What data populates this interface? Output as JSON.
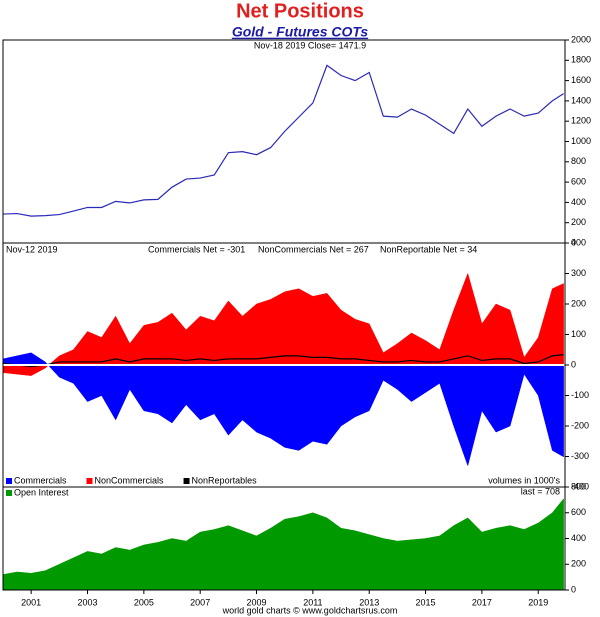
{
  "chart_data": [
    {
      "type": "line",
      "title": "Net Positions",
      "subtitle": "Gold - Futures COTs",
      "annotations": [
        "Nov-18 2019  Close= 1471.9"
      ],
      "x": [
        2000,
        2000.5,
        2001,
        2001.5,
        2002,
        2002.5,
        2003,
        2003.5,
        2004,
        2004.5,
        2005,
        2005.5,
        2006,
        2006.5,
        2007,
        2007.5,
        2008,
        2008.5,
        2009,
        2009.5,
        2010,
        2010.5,
        2011,
        2011.5,
        2012,
        2012.5,
        2013,
        2013.5,
        2014,
        2014.5,
        2015,
        2015.5,
        2016,
        2016.5,
        2017,
        2017.5,
        2018,
        2018.5,
        2019,
        2019.5,
        2019.9
      ],
      "xlim": [
        2000,
        2019.95
      ],
      "series": [
        {
          "name": "Gold",
          "color": "#2a2ab8",
          "values": [
            285,
            290,
            265,
            270,
            280,
            315,
            350,
            350,
            410,
            395,
            425,
            430,
            550,
            630,
            640,
            670,
            890,
            900,
            870,
            940,
            1100,
            1240,
            1380,
            1750,
            1650,
            1600,
            1680,
            1250,
            1240,
            1320,
            1260,
            1170,
            1080,
            1320,
            1150,
            1250,
            1320,
            1250,
            1280,
            1400,
            1471.9
          ]
        }
      ],
      "ylim": [
        0,
        2000
      ],
      "yticks": [
        0,
        200,
        400,
        600,
        800,
        1000,
        1200,
        1400,
        1600,
        1800,
        2000
      ]
    },
    {
      "type": "area",
      "annotations": [
        "Nov-12  2019",
        "Commercials Net = -301",
        "NonCommercials Net = 267",
        "NonReportable Net = 34",
        "volumes in 1000's"
      ],
      "x": [
        2000,
        2000.5,
        2001,
        2001.5,
        2002,
        2002.5,
        2003,
        2003.5,
        2004,
        2004.5,
        2005,
        2005.5,
        2006,
        2006.5,
        2007,
        2007.5,
        2008,
        2008.5,
        2009,
        2009.5,
        2010,
        2010.5,
        2011,
        2011.5,
        2012,
        2012.5,
        2013,
        2013.5,
        2014,
        2014.5,
        2015,
        2015.5,
        2016,
        2016.5,
        2017,
        2017.5,
        2018,
        2018.5,
        2019,
        2019.5,
        2019.9
      ],
      "xlim": [
        2000,
        2019.95
      ],
      "series": [
        {
          "name": "Commercials",
          "color": "#0000ff",
          "values": [
            20,
            30,
            40,
            10,
            -40,
            -60,
            -120,
            -100,
            -180,
            -80,
            -150,
            -160,
            -190,
            -130,
            -180,
            -160,
            -230,
            -180,
            -220,
            -240,
            -270,
            -280,
            -250,
            -260,
            -200,
            -170,
            -150,
            -50,
            -80,
            -120,
            -90,
            -60,
            -200,
            -330,
            -150,
            -220,
            -200,
            -30,
            -100,
            -280,
            -301
          ]
        },
        {
          "name": "NonCommercials",
          "color": "#ff0000",
          "values": [
            -25,
            -30,
            -35,
            -10,
            30,
            50,
            110,
            90,
            160,
            70,
            130,
            140,
            170,
            115,
            160,
            145,
            210,
            160,
            200,
            215,
            240,
            250,
            225,
            235,
            180,
            150,
            135,
            40,
            70,
            105,
            80,
            50,
            180,
            300,
            135,
            200,
            180,
            25,
            90,
            250,
            267
          ]
        },
        {
          "name": "NonReportables",
          "color": "#000000",
          "values": [
            5,
            0,
            -5,
            0,
            10,
            10,
            10,
            10,
            20,
            10,
            20,
            20,
            20,
            15,
            20,
            15,
            20,
            20,
            20,
            25,
            30,
            30,
            25,
            25,
            20,
            20,
            15,
            10,
            10,
            15,
            10,
            10,
            20,
            30,
            15,
            20,
            20,
            5,
            10,
            30,
            34
          ]
        }
      ],
      "ylim": [
        -400,
        400
      ],
      "yticks": [
        -400,
        -300,
        -200,
        -100,
        0,
        100,
        200,
        300,
        400
      ],
      "zero_line": true,
      "legend": "lower left"
    },
    {
      "type": "area",
      "credit": "world gold charts © www.goldchartsrus.com",
      "annotations": [
        "last = 708"
      ],
      "x": [
        2000,
        2000.5,
        2001,
        2001.5,
        2002,
        2002.5,
        2003,
        2003.5,
        2004,
        2004.5,
        2005,
        2005.5,
        2006,
        2006.5,
        2007,
        2007.5,
        2008,
        2008.5,
        2009,
        2009.5,
        2010,
        2010.5,
        2011,
        2011.5,
        2012,
        2012.5,
        2013,
        2013.5,
        2014,
        2014.5,
        2015,
        2015.5,
        2016,
        2016.5,
        2017,
        2017.5,
        2018,
        2018.5,
        2019,
        2019.5,
        2019.9
      ],
      "xlim": [
        2000,
        2019.95
      ],
      "xticks": [
        2001,
        2003,
        2005,
        2007,
        2009,
        2011,
        2013,
        2015,
        2017,
        2019
      ],
      "series": [
        {
          "name": "Open Interest",
          "color": "#009900",
          "values": [
            120,
            140,
            130,
            150,
            200,
            250,
            300,
            280,
            330,
            310,
            350,
            370,
            400,
            380,
            450,
            470,
            500,
            460,
            420,
            480,
            550,
            570,
            600,
            560,
            480,
            460,
            430,
            400,
            380,
            390,
            400,
            420,
            500,
            560,
            450,
            480,
            500,
            470,
            520,
            600,
            708
          ]
        }
      ],
      "ylim": [
        0,
        800
      ],
      "yticks": [
        0,
        200,
        400,
        600,
        800
      ],
      "legend": "upper left"
    }
  ]
}
